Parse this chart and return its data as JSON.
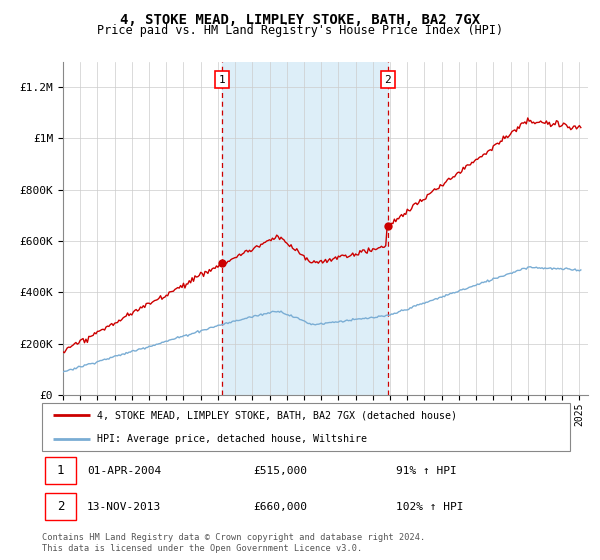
{
  "title": "4, STOKE MEAD, LIMPLEY STOKE, BATH, BA2 7GX",
  "subtitle": "Price paid vs. HM Land Registry's House Price Index (HPI)",
  "title_fontsize": 10,
  "subtitle_fontsize": 8.5,
  "hpi_color": "#7aadd4",
  "price_color": "#cc0000",
  "shaded_region_color": "#ddeef8",
  "annotation1_date": 2004.25,
  "annotation2_date": 2013.87,
  "annotation1_price": 515000,
  "annotation2_price": 660000,
  "legend_line1": "4, STOKE MEAD, LIMPLEY STOKE, BATH, BA2 7GX (detached house)",
  "legend_line2": "HPI: Average price, detached house, Wiltshire",
  "footer": "Contains HM Land Registry data © Crown copyright and database right 2024.\nThis data is licensed under the Open Government Licence v3.0.",
  "ylim": [
    0,
    1300000
  ],
  "yticks": [
    0,
    200000,
    400000,
    600000,
    800000,
    1000000,
    1200000
  ],
  "ytick_labels": [
    "£0",
    "£200K",
    "£400K",
    "£600K",
    "£800K",
    "£1M",
    "£1.2M"
  ],
  "xstart": 1995,
  "xend": 2025
}
